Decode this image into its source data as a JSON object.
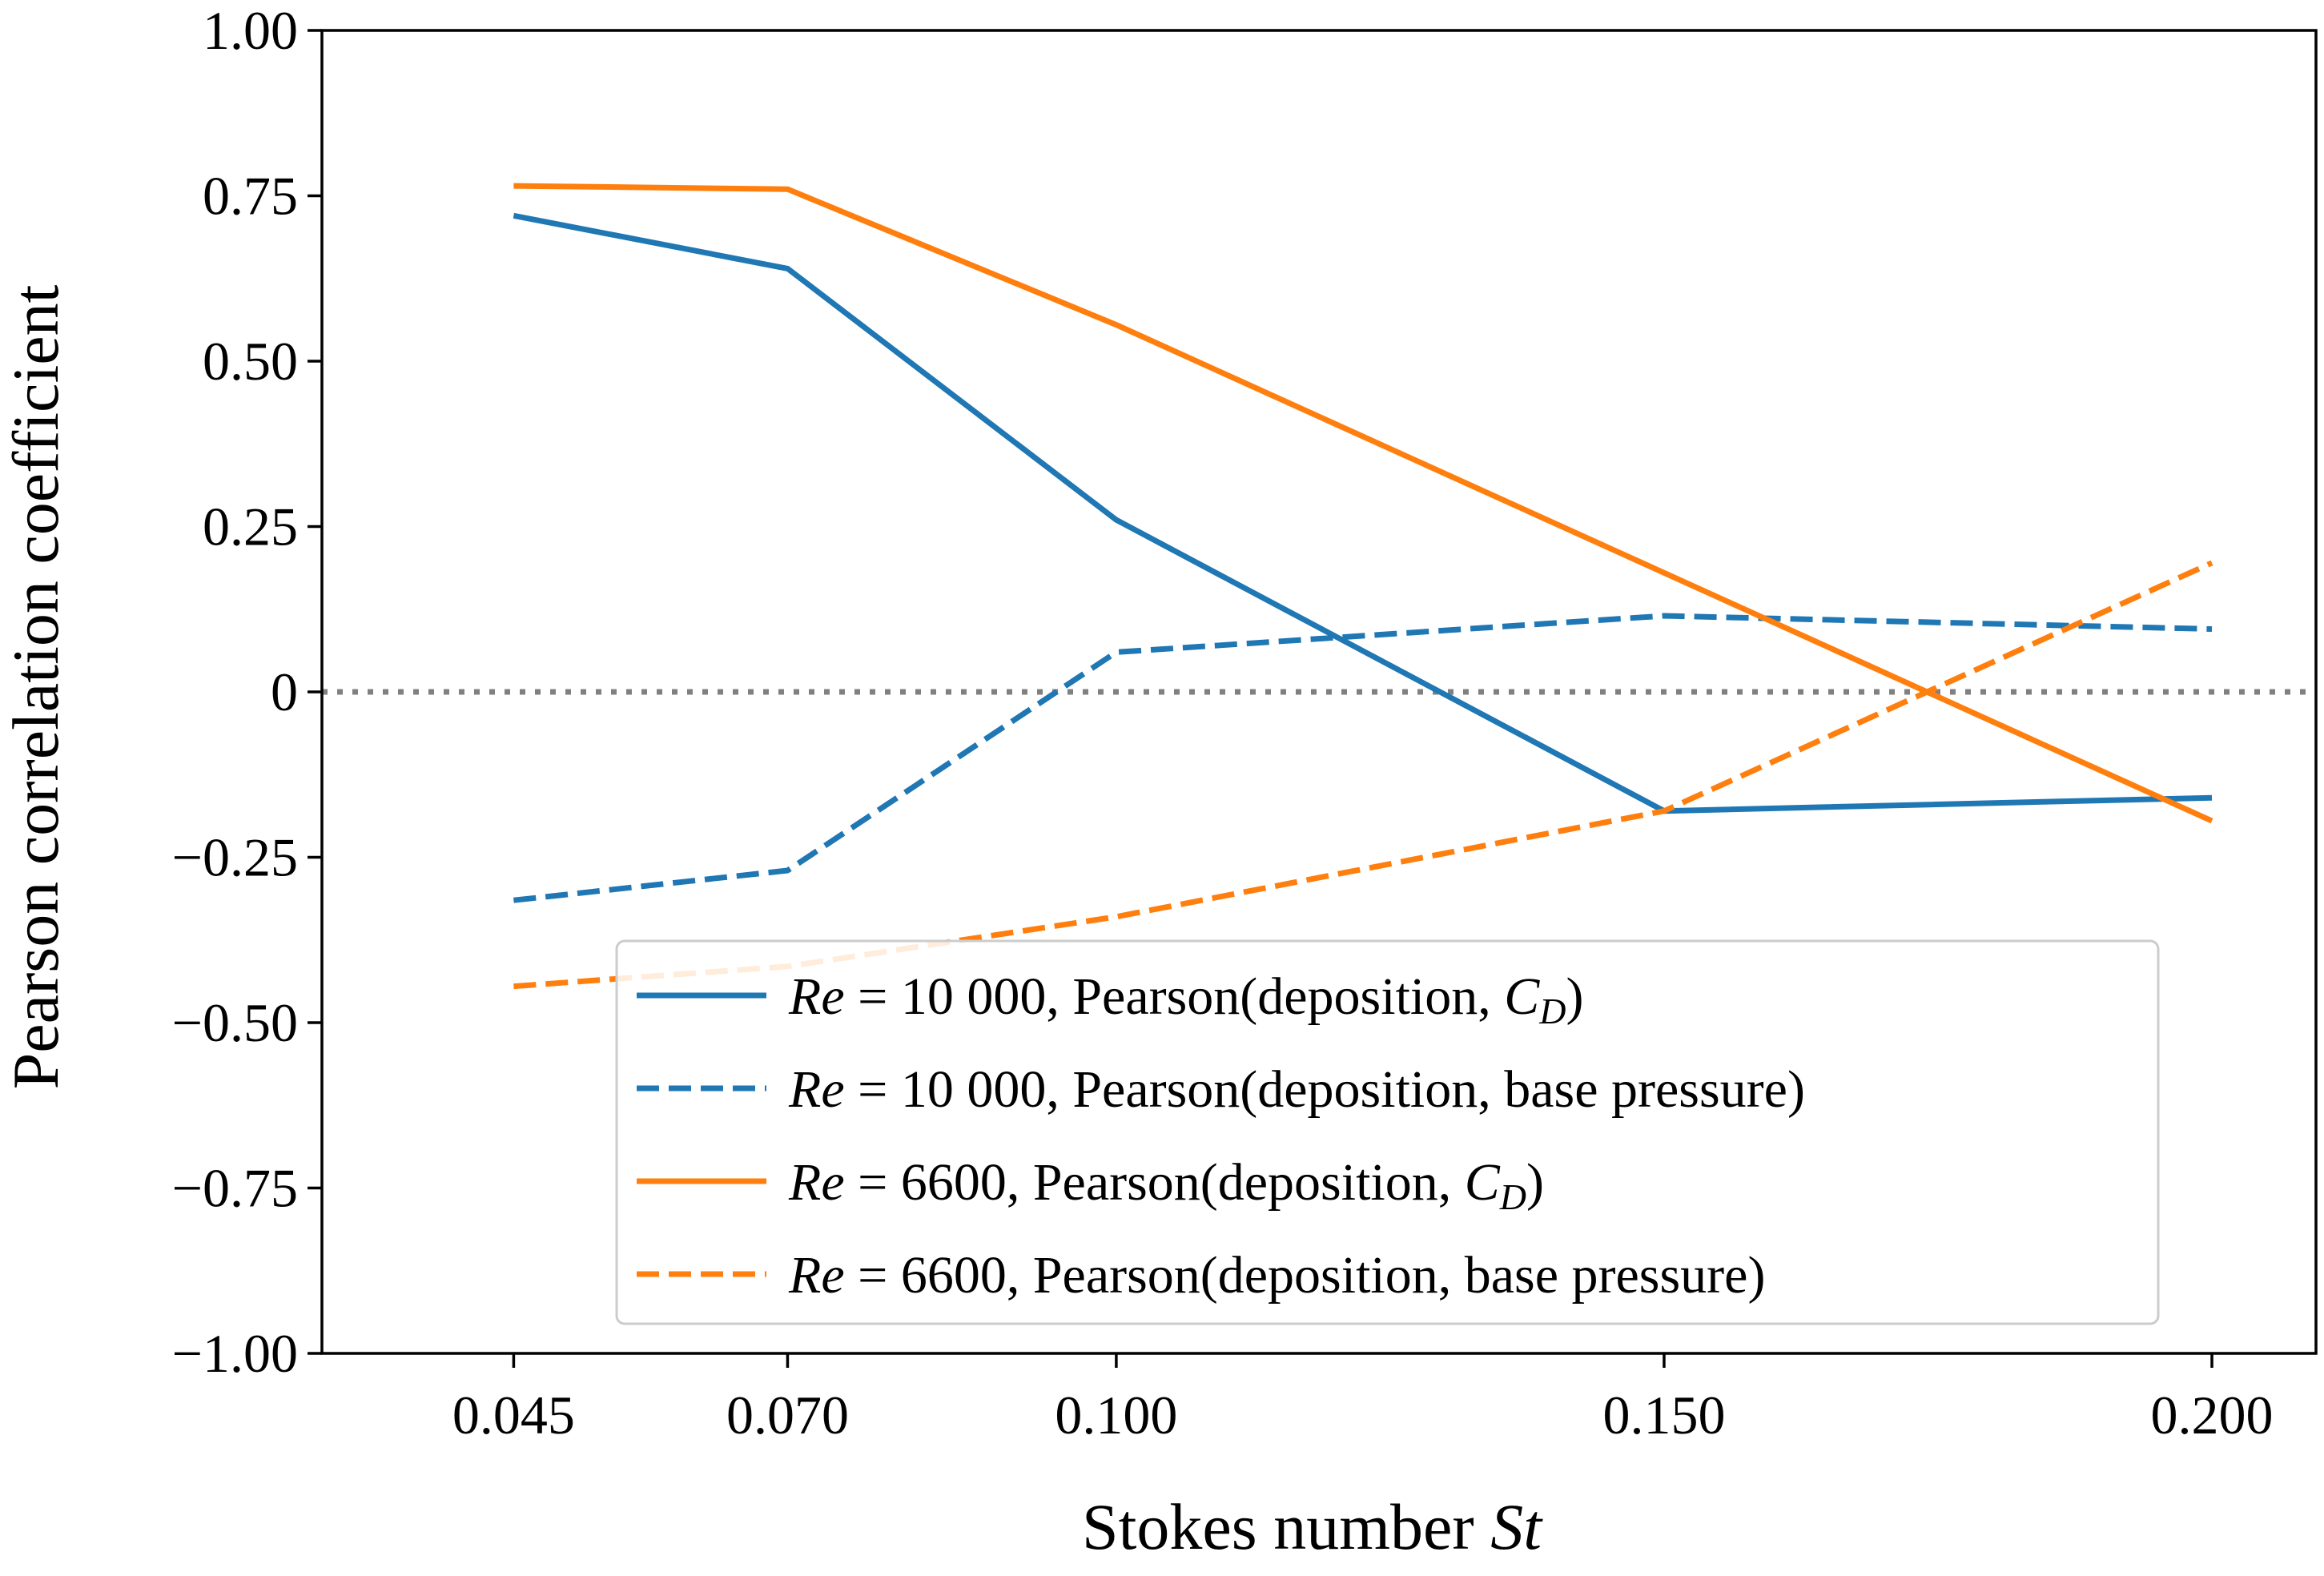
{
  "chart_data": {
    "type": "line",
    "title": "",
    "xlabel": "Stokes number St",
    "xlabel_parts": {
      "text": "Stokes number ",
      "symbol": "St"
    },
    "ylabel": "Pearson correlation coefficient",
    "x": [
      0.045,
      0.07,
      0.1,
      0.15,
      0.2
    ],
    "x_tick_labels": [
      "0.045",
      "0.070",
      "0.100",
      "0.150",
      "0.200"
    ],
    "ylim": [
      -1.0,
      1.0
    ],
    "y_ticks": [
      1.0,
      0.75,
      0.5,
      0.25,
      0,
      -0.25,
      -0.5,
      -0.75,
      -1.0
    ],
    "y_tick_labels": [
      "1.00",
      "0.75",
      "0.50",
      "0.25",
      "0",
      "−0.25",
      "−0.50",
      "−0.75",
      "−1.00"
    ],
    "reference_line": {
      "y": 0,
      "style": "dotted",
      "color": "#808080"
    },
    "legend_position": "lower-right",
    "series": [
      {
        "name": "Re = 10 000, Pearson(deposition, C_D)",
        "label_parts": {
          "re": "Re",
          "rest": " = 10 000, Pearson(deposition, ",
          "sym": "C",
          "sub": "D",
          "close": ")"
        },
        "values": [
          0.72,
          0.64,
          0.26,
          -0.18,
          -0.16
        ],
        "color": "#1f77b4",
        "linestyle": "solid"
      },
      {
        "name": "Re = 10 000, Pearson(deposition, base pressure)",
        "label_parts": {
          "re": "Re",
          "rest": " = 10 000, Pearson(deposition, base pressure)"
        },
        "values": [
          -0.315,
          -0.27,
          0.06,
          0.115,
          0.095
        ],
        "color": "#1f77b4",
        "linestyle": "dashed"
      },
      {
        "name": "Re = 6600, Pearson(deposition, C_D)",
        "label_parts": {
          "re": "Re",
          "rest": " = 6600, Pearson(deposition, ",
          "sym": "C",
          "sub": "D",
          "close": ")"
        },
        "values": [
          0.765,
          0.76,
          0.555,
          0.18,
          -0.195
        ],
        "color": "#ff7f0e",
        "linestyle": "solid"
      },
      {
        "name": "Re = 6600, Pearson(deposition, base pressure)",
        "label_parts": {
          "re": "Re",
          "rest": " = 6600, Pearson(deposition, base pressure)"
        },
        "values": [
          -0.445,
          -0.415,
          -0.34,
          -0.18,
          0.195
        ],
        "color": "#ff7f0e",
        "linestyle": "dashed"
      }
    ]
  }
}
